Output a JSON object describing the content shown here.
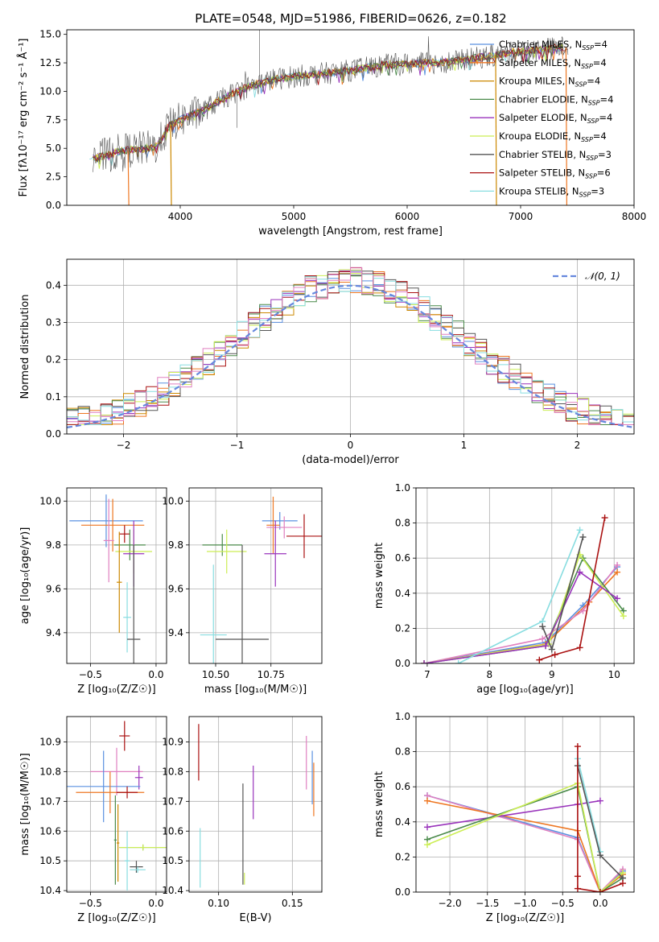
{
  "title": "PLATE=0548, MJD=51986, FIBERID=0626, z=0.182",
  "colors": {
    "chab_miles": "#5a90e0",
    "salp_miles": "#ee7722",
    "krou_miles": "#cc8800",
    "chab_elodie": "#4a8a4a",
    "salp_elodie": "#9933bb",
    "krou_elodie": "#ccee55",
    "chab_stelib": "#555555",
    "salp_stelib": "#aa1111",
    "krou_stelib": "#88dde0",
    "extra_pink": "#e080c0",
    "gauss": "#6688dd"
  },
  "legend_spectrum": [
    {
      "key": "chab_miles",
      "pre": "Chabrier MILES, N",
      "sub": "SSP",
      "post": "=4"
    },
    {
      "key": "salp_miles",
      "pre": "Salpeter MILES, N",
      "sub": "SSP",
      "post": "=4"
    },
    {
      "key": "krou_miles",
      "pre": "Kroupa MILES, N",
      "sub": "SSP",
      "post": "=4"
    },
    {
      "key": "chab_elodie",
      "pre": "Chabrier ELODIE, N",
      "sub": "SSP",
      "post": "=4"
    },
    {
      "key": "salp_elodie",
      "pre": "Salpeter ELODIE, N",
      "sub": "SSP",
      "post": "=4"
    },
    {
      "key": "krou_elodie",
      "pre": "Kroupa ELODIE, N",
      "sub": "SSP",
      "post": "=4"
    },
    {
      "key": "chab_stelib",
      "pre": "Chabrier STELIB, N",
      "sub": "SSP",
      "post": "=3"
    },
    {
      "key": "salp_stelib",
      "pre": "Salpeter STELIB, N",
      "sub": "SSP",
      "post": "=6"
    },
    {
      "key": "krou_stelib",
      "pre": "Kroupa STELIB, N",
      "sub": "SSP",
      "post": "=3"
    }
  ],
  "chart_data": [
    {
      "id": "spectrum",
      "type": "line",
      "xlabel": "wavelength [Angstrom, rest frame]",
      "ylabel": "Flux [fλ10⁻¹⁷ erg cm⁻² s⁻¹ Å⁻¹]",
      "xlim": [
        3000,
        8000
      ],
      "ylim": [
        0,
        15.4
      ],
      "xticks": [
        4000,
        5000,
        6000,
        7000,
        8000
      ],
      "yticks": [
        0.0,
        2.5,
        5.0,
        7.5,
        10.0,
        12.5,
        15.0
      ],
      "ytick_labels": [
        "0.0",
        "2.5",
        "5.0",
        "7.5",
        "10.0",
        "12.5",
        "15.0"
      ],
      "continuum": {
        "x": [
          3200,
          3500,
          3700,
          3800,
          3900,
          4000,
          4200,
          4400,
          4600,
          4800,
          5000,
          5200,
          5400,
          5600,
          5800,
          6000,
          6200,
          6400,
          6600,
          6800,
          7000,
          7200,
          7400,
          7600,
          7800
        ],
        "y": [
          4.0,
          4.8,
          5.0,
          5.2,
          7.0,
          7.5,
          8.3,
          9.5,
          10.4,
          11.0,
          11.3,
          11.5,
          11.7,
          12.0,
          12.3,
          12.4,
          12.5,
          12.6,
          12.9,
          13.2,
          13.5,
          13.7,
          13.9,
          14.0,
          14.1
        ]
      },
      "drops": [
        {
          "key": "salp_miles",
          "x": 3540
        },
        {
          "key": "krou_miles",
          "x": 3915
        },
        {
          "key": "krou_miles",
          "x": 6780
        },
        {
          "key": "salp_miles",
          "x": 7400
        }
      ]
    },
    {
      "id": "residuals",
      "type": "bar",
      "xlabel": "(data-model)/error",
      "ylabel": "Normed distribution",
      "xlim": [
        -2.5,
        2.5
      ],
      "ylim": [
        0,
        0.47
      ],
      "xticks": [
        -2,
        -1,
        0,
        1,
        2
      ],
      "xtick_labels": [
        "−2",
        "−1",
        "0",
        "1",
        "2"
      ],
      "yticks": [
        0.0,
        0.1,
        0.2,
        0.3,
        0.4
      ],
      "ytick_labels": [
        "0.0",
        "0.1",
        "0.2",
        "0.3",
        "0.4"
      ],
      "gauss_label": "𝒩(0, 1)",
      "bin_width": 0.1
    },
    {
      "id": "age_vs_Z",
      "type": "scatter",
      "xlabel": "Z [log₁₀(Z/Z☉)]",
      "ylabel": "age  [log₁₀(age/yr)]",
      "xlim": [
        -0.68,
        0.08
      ],
      "ylim": [
        9.26,
        10.06
      ],
      "xticks": [
        -0.5,
        0.0
      ],
      "xtick_labels": [
        "−0.5",
        "0.0"
      ],
      "yticks": [
        9.4,
        9.6,
        9.8,
        10.0
      ],
      "ytick_labels": [
        "9.4",
        "9.6",
        "9.8",
        "10.0"
      ],
      "points": [
        {
          "key": "chab_miles",
          "x": -0.38,
          "y": 9.91,
          "xe": 0.28,
          "ye": 0.12
        },
        {
          "key": "salp_miles",
          "x": -0.33,
          "y": 9.89,
          "xe": 0.24,
          "ye": 0.12
        },
        {
          "key": "extra_pink",
          "x": -0.36,
          "y": 9.82,
          "xe": 0.04,
          "ye": 0.19
        },
        {
          "key": "salp_stelib",
          "x": -0.24,
          "y": 9.85,
          "xe": 0.04,
          "ye": 0.04
        },
        {
          "key": "chab_elodie",
          "x": -0.2,
          "y": 9.8,
          "xe": 0.12,
          "ye": 0.07
        },
        {
          "key": "krou_elodie",
          "x": -0.17,
          "y": 9.77,
          "xe": 0.14,
          "ye": 0.1
        },
        {
          "key": "salp_elodie",
          "x": -0.17,
          "y": 9.76,
          "xe": 0.08,
          "ye": 0.15
        },
        {
          "key": "krou_miles",
          "x": -0.28,
          "y": 9.63,
          "xe": 0.02,
          "ye": 0.23
        },
        {
          "key": "krou_stelib",
          "x": -0.22,
          "y": 9.47,
          "xe": 0.03,
          "ye": 0.16
        },
        {
          "key": "chab_stelib",
          "x": -0.17,
          "y": 9.37,
          "xe": 0.05,
          "ye": 0.43
        }
      ]
    },
    {
      "id": "age_vs_mass",
      "type": "scatter",
      "xlabel": "mass [log₁₀(M/M☉)]",
      "ylabel": "",
      "xlim": [
        10.38,
        10.98
      ],
      "ylim": [
        9.26,
        10.06
      ],
      "xticks": [
        10.5,
        10.75
      ],
      "xtick_labels": [
        "10.50",
        "10.75"
      ],
      "yticks": [
        9.4,
        9.6,
        9.8,
        10.0
      ],
      "ytick_labels": [
        "9.4",
        "9.6",
        "9.8",
        "10.0"
      ],
      "points": [
        {
          "key": "chab_miles",
          "x": 10.79,
          "y": 9.91,
          "xe": 0.08,
          "ye": 0.04
        },
        {
          "key": "salp_miles",
          "x": 10.76,
          "y": 9.89,
          "xe": 0.03,
          "ye": 0.13
        },
        {
          "key": "extra_pink",
          "x": 10.81,
          "y": 9.88,
          "xe": 0.08,
          "ye": 0.05
        },
        {
          "key": "salp_stelib",
          "x": 10.9,
          "y": 9.84,
          "xe": 0.08,
          "ye": 0.1
        },
        {
          "key": "chab_elodie",
          "x": 10.53,
          "y": 9.8,
          "xe": 0.09,
          "ye": 0.05
        },
        {
          "key": "krou_elodie",
          "x": 10.55,
          "y": 9.77,
          "xe": 0.09,
          "ye": 0.1
        },
        {
          "key": "salp_elodie",
          "x": 10.77,
          "y": 9.76,
          "xe": 0.05,
          "ye": 0.15
        },
        {
          "key": "krou_stelib",
          "x": 10.49,
          "y": 9.39,
          "xe": 0.06,
          "ye": 0.32
        },
        {
          "key": "chab_stelib",
          "x": 10.62,
          "y": 9.37,
          "xe": 0.12,
          "ye": 0.43
        }
      ]
    },
    {
      "id": "mw_vs_age",
      "type": "line",
      "xlabel": "age  [log₁₀(age/yr)]",
      "ylabel": "mass weight",
      "xlim": [
        6.82,
        10.32
      ],
      "ylim": [
        0,
        1.0
      ],
      "xticks": [
        7,
        8,
        9,
        10
      ],
      "xtick_labels": [
        "7",
        "8",
        "9",
        "10"
      ],
      "yticks": [
        0.0,
        0.2,
        0.4,
        0.6,
        0.8,
        1.0
      ],
      "ytick_labels": [
        "0.0",
        "0.2",
        "0.4",
        "0.6",
        "0.8",
        "1.0"
      ],
      "series": [
        {
          "key": "chab_miles",
          "x": [
            6.95,
            8.9,
            9.5,
            10.05
          ],
          "y": [
            0.0,
            0.12,
            0.33,
            0.55
          ]
        },
        {
          "key": "salp_miles",
          "x": [
            6.95,
            8.9,
            9.6,
            10.05
          ],
          "y": [
            0.0,
            0.11,
            0.35,
            0.52
          ]
        },
        {
          "key": "extra_pink",
          "x": [
            6.95,
            8.85,
            9.5,
            10.05
          ],
          "y": [
            0.0,
            0.14,
            0.3,
            0.56
          ]
        },
        {
          "key": "chab_elodie",
          "x": [
            6.95,
            8.9,
            9.5,
            10.15
          ],
          "y": [
            0.0,
            0.1,
            0.6,
            0.3
          ]
        },
        {
          "key": "krou_elodie",
          "x": [
            6.95,
            8.95,
            9.45,
            10.15
          ],
          "y": [
            0.0,
            0.11,
            0.62,
            0.27
          ]
        },
        {
          "key": "salp_elodie",
          "x": [
            6.95,
            8.9,
            9.45,
            10.05
          ],
          "y": [
            0.0,
            0.1,
            0.52,
            0.37
          ]
        },
        {
          "key": "krou_stelib",
          "x": [
            7.5,
            8.85,
            9.45
          ],
          "y": [
            0.0,
            0.24,
            0.76
          ]
        },
        {
          "key": "chab_stelib",
          "x": [
            8.85,
            9.0,
            9.5
          ],
          "y": [
            0.21,
            0.08,
            0.72
          ]
        },
        {
          "key": "salp_stelib",
          "x": [
            8.8,
            9.05,
            9.45,
            9.85
          ],
          "y": [
            0.02,
            0.05,
            0.09,
            0.83
          ]
        }
      ]
    },
    {
      "id": "mass_vs_Z",
      "type": "scatter",
      "xlabel": "Z [log₁₀(Z/Z☉)]",
      "ylabel": "mass [log₁₀(M/M☉)]",
      "xlim": [
        -0.68,
        0.08
      ],
      "ylim": [
        10.395,
        10.985
      ],
      "xticks": [
        -0.5,
        0.0
      ],
      "xtick_labels": [
        "−0.5",
        "0.0"
      ],
      "yticks": [
        10.4,
        10.5,
        10.6,
        10.7,
        10.8,
        10.9
      ],
      "ytick_labels": [
        "10.4",
        "10.5",
        "10.6",
        "10.7",
        "10.8",
        "10.9"
      ],
      "points": [
        {
          "key": "salp_stelib",
          "x": -0.24,
          "y": 10.92,
          "xe": 0.04,
          "ye": 0.05
        },
        {
          "key": "extra_pink",
          "x": -0.3,
          "y": 10.8,
          "xe": 0.2,
          "ye": 0.08
        },
        {
          "key": "salp_elodie",
          "x": -0.13,
          "y": 10.78,
          "xe": 0.03,
          "ye": 0.04
        },
        {
          "key": "chab_miles",
          "x": -0.4,
          "y": 10.75,
          "xe": 0.28,
          "ye": 0.12
        },
        {
          "key": "salp_miles",
          "x": -0.35,
          "y": 10.73,
          "xe": 0.26,
          "ye": 0.07
        },
        {
          "key": "salp_stelib",
          "x": -0.22,
          "y": 10.73,
          "xe": 0.08,
          "ye": 0.02
        },
        {
          "key": "chab_elodie",
          "x": -0.1,
          "y": 10.545,
          "xe": 0.18,
          "ye": 0.01
        },
        {
          "key": "krou_elodie",
          "x": -0.1,
          "y": 10.545,
          "xe": 0.18,
          "ye": 0.01
        },
        {
          "key": "chab_elodie",
          "x": -0.31,
          "y": 10.57,
          "xe": 0.01,
          "ye": 0.15
        },
        {
          "key": "krou_miles",
          "x": -0.29,
          "y": 10.56,
          "xe": 0.01,
          "ye": 0.13
        },
        {
          "key": "krou_stelib",
          "x": -0.22,
          "y": 10.5,
          "xe": 0.02,
          "ye": 0.1
        },
        {
          "key": "chab_stelib",
          "x": -0.15,
          "y": 10.48,
          "xe": 0.05,
          "ye": 0.02
        },
        {
          "key": "krou_stelib",
          "x": -0.14,
          "y": 10.47,
          "xe": 0.06,
          "ye": 0.01
        }
      ]
    },
    {
      "id": "mass_vs_EBV",
      "type": "scatter",
      "xlabel": "E(B-V)",
      "ylabel": "",
      "xlim": [
        0.08,
        0.17
      ],
      "ylim": [
        10.395,
        10.985
      ],
      "xticks": [
        0.1,
        0.15
      ],
      "xtick_labels": [
        "0.10",
        "0.15"
      ],
      "yticks": [
        10.4,
        10.5,
        10.6,
        10.7,
        10.8,
        10.9
      ],
      "ytick_labels": [
        "10.4",
        "10.5",
        "10.6",
        "10.7",
        "10.8",
        "10.9"
      ],
      "points": [
        {
          "key": "salp_stelib",
          "x": 0.0865,
          "y": 10.865,
          "xe": 0,
          "ye": 0.095
        },
        {
          "key": "krou_stelib",
          "x": 0.0875,
          "y": 10.51,
          "xe": 0,
          "ye": 0.1
        },
        {
          "key": "chab_stelib",
          "x": 0.1165,
          "y": 10.59,
          "xe": 0,
          "ye": 0.17
        },
        {
          "key": "krou_elodie",
          "x": 0.1175,
          "y": 10.44,
          "xe": 0,
          "ye": 0.02
        },
        {
          "key": "salp_elodie",
          "x": 0.1235,
          "y": 10.73,
          "xe": 0,
          "ye": 0.09
        },
        {
          "key": "extra_pink",
          "x": 0.1595,
          "y": 10.83,
          "xe": 0,
          "ye": 0.09
        },
        {
          "key": "chab_miles",
          "x": 0.1635,
          "y": 10.78,
          "xe": 0,
          "ye": 0.09
        },
        {
          "key": "salp_miles",
          "x": 0.1645,
          "y": 10.74,
          "xe": 0,
          "ye": 0.09
        }
      ]
    },
    {
      "id": "mw_vs_Z",
      "type": "line",
      "xlabel": "Z [log₁₀(Z/Z☉)]",
      "ylabel": "mass weight",
      "xlim": [
        -2.45,
        0.45
      ],
      "ylim": [
        0,
        1.0
      ],
      "xticks": [
        -2.0,
        -1.5,
        -1.0,
        -0.5,
        0.0
      ],
      "xtick_labels": [
        "−2.0",
        "−1.5",
        "−1.0",
        "−0.5",
        "0.0"
      ],
      "yticks": [
        0.0,
        0.2,
        0.4,
        0.6,
        0.8,
        1.0
      ],
      "ytick_labels": [
        "0.0",
        "0.2",
        "0.4",
        "0.6",
        "0.8",
        "1.0"
      ],
      "series": [
        {
          "key": "chab_miles",
          "x": [
            -2.3,
            -0.3,
            0.0,
            0.3
          ],
          "y": [
            0.55,
            0.31,
            0.0,
            0.12
          ]
        },
        {
          "key": "extra_pink",
          "x": [
            -2.3,
            -0.3,
            0.0,
            0.3
          ],
          "y": [
            0.55,
            0.3,
            0.0,
            0.13
          ]
        },
        {
          "key": "salp_miles",
          "x": [
            -2.3,
            -0.3,
            0.0,
            0.3
          ],
          "y": [
            0.52,
            0.35,
            0.0,
            0.1
          ]
        },
        {
          "key": "salp_elodie",
          "x": [
            -2.3,
            -0.3,
            0.0
          ],
          "y": [
            0.37,
            0.5,
            0.52
          ]
        },
        {
          "key": "chab_elodie",
          "x": [
            -2.3,
            -0.3,
            0.0,
            0.3
          ],
          "y": [
            0.3,
            0.6,
            0.0,
            0.08
          ]
        },
        {
          "key": "krou_elodie",
          "x": [
            -2.3,
            -0.3,
            0.0,
            0.3
          ],
          "y": [
            0.27,
            0.62,
            0.0,
            0.11
          ]
        },
        {
          "key": "krou_stelib",
          "x": [
            -0.3,
            0.0
          ],
          "y": [
            0.76,
            0.23
          ]
        },
        {
          "key": "chab_stelib",
          "x": [
            -0.3,
            0.0,
            0.3
          ],
          "y": [
            0.72,
            0.21,
            0.08
          ]
        },
        {
          "key": "salp_stelib",
          "x": [
            -0.3,
            -0.3,
            -0.3,
            0.0,
            0.3
          ],
          "y": [
            0.83,
            0.09,
            0.02,
            0.0,
            0.05
          ]
        }
      ]
    }
  ]
}
